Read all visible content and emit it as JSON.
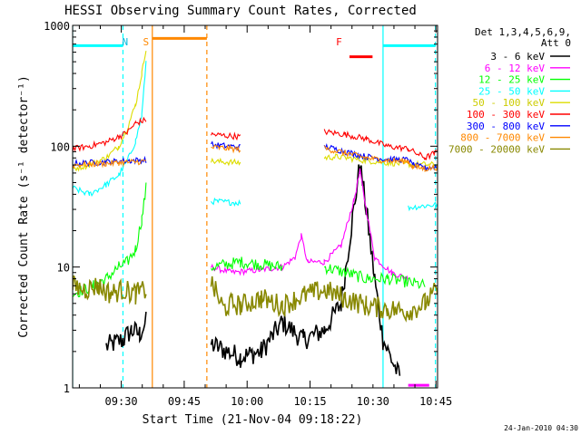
{
  "chart_data": {
    "type": "line",
    "title": "HESSI Observing Summary Count Rates, Corrected",
    "xlabel": "Start Time (21-Nov-04 09:18:22)",
    "ylabel": "Corrected Count Rate (s⁻¹ detector⁻¹)",
    "footer": "24-Jan-2010 04:30",
    "yscale": "log",
    "ylim": [
      1,
      1000
    ],
    "y_ticks": [
      {
        "value": 1,
        "label": "1"
      },
      {
        "value": 10,
        "label": "10"
      },
      {
        "value": 100,
        "label": "100"
      },
      {
        "value": 1000,
        "label": "1000"
      }
    ],
    "x_unit": "minutes after 09:18:22",
    "xlim": [
      0,
      87
    ],
    "x_ticks": [
      {
        "value": 11.6,
        "label": "09:30"
      },
      {
        "value": 26.6,
        "label": "09:45"
      },
      {
        "value": 41.6,
        "label": "10:00"
      },
      {
        "value": 56.6,
        "label": "10:15"
      },
      {
        "value": 71.6,
        "label": "10:30"
      },
      {
        "value": 86.6,
        "label": "10:45"
      }
    ],
    "legend_header": [
      "Det 1,3,4,5,6,9,",
      "Att 0"
    ],
    "legend_position": "right",
    "series": [
      {
        "name": "3 - 6 keV",
        "color": "#000000",
        "points": [
          [
            8,
            2.2
          ],
          [
            12,
            2.5
          ],
          [
            14,
            3.0
          ],
          [
            16,
            2.8
          ],
          [
            17.5,
            3.5
          ],
          [
            33,
            2.3
          ],
          [
            40,
            1.8
          ],
          [
            45,
            2.0
          ],
          [
            50,
            3.5
          ],
          [
            55,
            2.5
          ],
          [
            60,
            3.0
          ],
          [
            64,
            5
          ],
          [
            67,
            30
          ],
          [
            68.5,
            70
          ],
          [
            70,
            30
          ],
          [
            72,
            8
          ],
          [
            74,
            2.5
          ],
          [
            78,
            1.2
          ]
        ]
      },
      {
        "name": "6 - 12 keV",
        "color": "#ff00ff",
        "points": [
          [
            33,
            10
          ],
          [
            38,
            9
          ],
          [
            45,
            9.5
          ],
          [
            50,
            10
          ],
          [
            53,
            12
          ],
          [
            54.5,
            18
          ],
          [
            56,
            11
          ],
          [
            60,
            11
          ],
          [
            64,
            15
          ],
          [
            67,
            35
          ],
          [
            68.5,
            62
          ],
          [
            70,
            30
          ],
          [
            72,
            12
          ],
          [
            76,
            9
          ],
          [
            80,
            8
          ]
        ]
      },
      {
        "name": "12 - 25 keV",
        "color": "#00ff00",
        "points": [
          [
            0,
            6
          ],
          [
            5,
            7
          ],
          [
            8,
            8
          ],
          [
            11,
            10
          ],
          [
            13,
            11
          ],
          [
            15,
            14
          ],
          [
            16.5,
            25
          ],
          [
            17.5,
            45
          ],
          [
            33,
            10
          ],
          [
            40,
            11
          ],
          [
            45,
            10.5
          ],
          [
            50,
            10
          ],
          [
            60,
            10
          ],
          [
            65,
            9
          ],
          [
            70,
            8
          ],
          [
            75,
            8
          ],
          [
            80,
            7.5
          ],
          [
            84,
            7
          ]
        ]
      },
      {
        "name": "25 - 50 keV",
        "color": "#00ffff",
        "points": [
          [
            0,
            45
          ],
          [
            4,
            40
          ],
          [
            8,
            48
          ],
          [
            11,
            58
          ],
          [
            13,
            75
          ],
          [
            15,
            110
          ],
          [
            16.5,
            180
          ],
          [
            17.5,
            500
          ],
          [
            33,
            35
          ],
          [
            40,
            34
          ],
          [
            50,
            35
          ],
          [
            60,
            33
          ],
          [
            70,
            32
          ],
          [
            80,
            31
          ],
          [
            87,
            33
          ]
        ]
      },
      {
        "name": "50 - 100 keV",
        "color": "#dddd00",
        "points": [
          [
            0,
            65
          ],
          [
            4,
            70
          ],
          [
            8,
            80
          ],
          [
            11,
            100
          ],
          [
            13,
            140
          ],
          [
            15,
            220
          ],
          [
            16.5,
            400
          ],
          [
            17.5,
            650
          ],
          [
            33,
            75
          ],
          [
            40,
            73
          ],
          [
            50,
            72
          ],
          [
            60,
            80
          ],
          [
            63,
            82
          ],
          [
            70,
            76
          ],
          [
            75,
            73
          ],
          [
            80,
            71
          ],
          [
            87,
            70
          ]
        ]
      },
      {
        "name": "100 - 300 keV",
        "color": "#ff0000",
        "points": [
          [
            0,
            95
          ],
          [
            4,
            100
          ],
          [
            8,
            108
          ],
          [
            11,
            120
          ],
          [
            13,
            130
          ],
          [
            15,
            155
          ],
          [
            17.5,
            165
          ],
          [
            33,
            125
          ],
          [
            40,
            120
          ],
          [
            50,
            118
          ],
          [
            60,
            132
          ],
          [
            65,
            125
          ],
          [
            70,
            115
          ],
          [
            75,
            100
          ],
          [
            80,
            95
          ],
          [
            84,
            80
          ],
          [
            87,
            90
          ]
        ]
      },
      {
        "name": "300 - 800 keV",
        "color": "#0000ff",
        "points": [
          [
            0,
            72
          ],
          [
            4,
            73
          ],
          [
            8,
            74
          ],
          [
            11,
            75
          ],
          [
            14,
            76
          ],
          [
            17.5,
            77
          ],
          [
            33,
            103
          ],
          [
            40,
            98
          ],
          [
            50,
            95
          ],
          [
            60,
            100
          ],
          [
            65,
            90
          ],
          [
            70,
            82
          ],
          [
            75,
            78
          ],
          [
            80,
            77
          ],
          [
            81,
            70
          ],
          [
            84,
            66
          ],
          [
            87,
            68
          ]
        ]
      },
      {
        "name": "800 - 7000 keV",
        "color": "#ff8800",
        "points": [
          [
            0,
            70
          ],
          [
            4,
            71
          ],
          [
            8,
            72
          ],
          [
            11,
            73
          ],
          [
            14,
            74
          ],
          [
            17.5,
            75
          ],
          [
            33,
            98
          ],
          [
            40,
            94
          ],
          [
            50,
            92
          ],
          [
            60,
            96
          ],
          [
            65,
            88
          ],
          [
            70,
            80
          ],
          [
            75,
            76
          ],
          [
            80,
            75
          ],
          [
            81,
            68
          ],
          [
            84,
            65
          ],
          [
            87,
            67
          ]
        ]
      },
      {
        "name": "7000 - 20000 keV",
        "color": "#888800",
        "points": [
          [
            0,
            7
          ],
          [
            3,
            6.5
          ],
          [
            6,
            7
          ],
          [
            9,
            6
          ],
          [
            12,
            6.5
          ],
          [
            15,
            6
          ],
          [
            17.5,
            6.5
          ],
          [
            33,
            7.5
          ],
          [
            36,
            4.5
          ],
          [
            38,
            5
          ],
          [
            40,
            4.8
          ],
          [
            45,
            5.5
          ],
          [
            50,
            4.8
          ],
          [
            55,
            5.8
          ],
          [
            60,
            6.5
          ],
          [
            65,
            5.5
          ],
          [
            70,
            4.8
          ],
          [
            75,
            4.5
          ],
          [
            80,
            4.3
          ],
          [
            84,
            5
          ],
          [
            87,
            6.5
          ]
        ]
      }
    ],
    "annotations": [
      {
        "label": "N",
        "color": "#00bbdd",
        "x": 12.5
      },
      {
        "label": "S",
        "color": "#ff8800",
        "x": 17.5
      },
      {
        "label": "F",
        "color": "#ff0000",
        "x": 63.5
      }
    ],
    "state_bars": [
      {
        "color": "#00ffff",
        "y": 680,
        "x0": 0,
        "x1": 12
      },
      {
        "color": "#ff8800",
        "y": 780,
        "x0": 19,
        "x1": 32
      },
      {
        "color": "#00ffff",
        "y": 680,
        "x0": 74,
        "x1": 86.5
      },
      {
        "color": "#ff0000",
        "y": 550,
        "x0": 66,
        "x1": 71.5
      },
      {
        "color": "#ff00ff",
        "y": 1.05,
        "x0": 80,
        "x1": 85
      }
    ],
    "vlines": [
      {
        "x": 0,
        "color": "#00ffff",
        "style": "solid"
      },
      {
        "x": 12,
        "color": "#00ffff",
        "style": "dashed"
      },
      {
        "x": 19,
        "color": "#ff8800",
        "style": "solid"
      },
      {
        "x": 32,
        "color": "#ff8800",
        "style": "dashed"
      },
      {
        "x": 74,
        "color": "#00ffff",
        "style": "solid"
      },
      {
        "x": 86.5,
        "color": "#00ffff",
        "style": "dashed"
      }
    ],
    "grid": false
  }
}
